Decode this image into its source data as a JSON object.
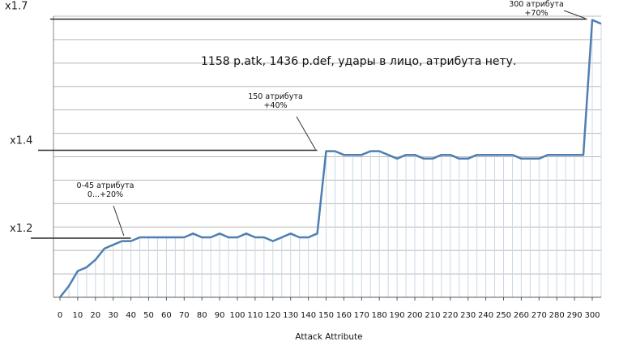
{
  "chart_data": {
    "type": "line",
    "xlabel": "Attack Attribute",
    "note": "1158 p.atk, 1436 p.def, удары в лицо, атрибута нету.",
    "xlim": [
      0,
      305
    ],
    "ylim": [
      0.97,
      1.72
    ],
    "grid": "horizontal+vertical",
    "color": "#4f7fb1",
    "x": [
      0,
      5,
      10,
      15,
      20,
      25,
      30,
      35,
      40,
      45,
      50,
      55,
      60,
      65,
      70,
      75,
      80,
      85,
      90,
      95,
      100,
      105,
      110,
      115,
      120,
      125,
      130,
      135,
      140,
      145,
      150,
      155,
      160,
      165,
      170,
      175,
      180,
      185,
      190,
      195,
      200,
      205,
      210,
      215,
      220,
      225,
      230,
      235,
      240,
      245,
      250,
      255,
      260,
      265,
      270,
      275,
      280,
      285,
      290,
      295,
      300,
      305
    ],
    "values": [
      0.97,
      1.0,
      1.04,
      1.05,
      1.07,
      1.1,
      1.11,
      1.12,
      1.12,
      1.13,
      1.13,
      1.13,
      1.13,
      1.13,
      1.13,
      1.14,
      1.13,
      1.13,
      1.14,
      1.13,
      1.13,
      1.14,
      1.13,
      1.13,
      1.12,
      1.13,
      1.14,
      1.13,
      1.13,
      1.14,
      1.36,
      1.36,
      1.35,
      1.35,
      1.35,
      1.36,
      1.36,
      1.35,
      1.34,
      1.35,
      1.35,
      1.34,
      1.34,
      1.35,
      1.35,
      1.34,
      1.34,
      1.35,
      1.35,
      1.35,
      1.35,
      1.35,
      1.34,
      1.34,
      1.34,
      1.35,
      1.35,
      1.35,
      1.35,
      1.35,
      1.71,
      1.7
    ],
    "xticks": [
      "0",
      "10",
      "20",
      "30",
      "40",
      "50",
      "60",
      "70",
      "80",
      "90",
      "100",
      "110",
      "120",
      "130",
      "140",
      "150",
      "160",
      "170",
      "180",
      "190",
      "200",
      "210",
      "220",
      "230",
      "240",
      "250",
      "260",
      "270",
      "280",
      "290",
      "300"
    ],
    "reference_lines": [
      {
        "label": "x1.2",
        "y": 1.13
      },
      {
        "label": "x1.4",
        "y": 1.36
      },
      {
        "label": "x1.7",
        "y": 1.71
      }
    ],
    "annotations": [
      {
        "lines": [
          "0-45 атрибута",
          "0...+20%"
        ],
        "x": 45
      },
      {
        "lines": [
          "150 атрибута",
          "+40%"
        ],
        "x": 150
      },
      {
        "lines": [
          "300 атрибута",
          "+70%"
        ],
        "x": 300
      }
    ]
  }
}
